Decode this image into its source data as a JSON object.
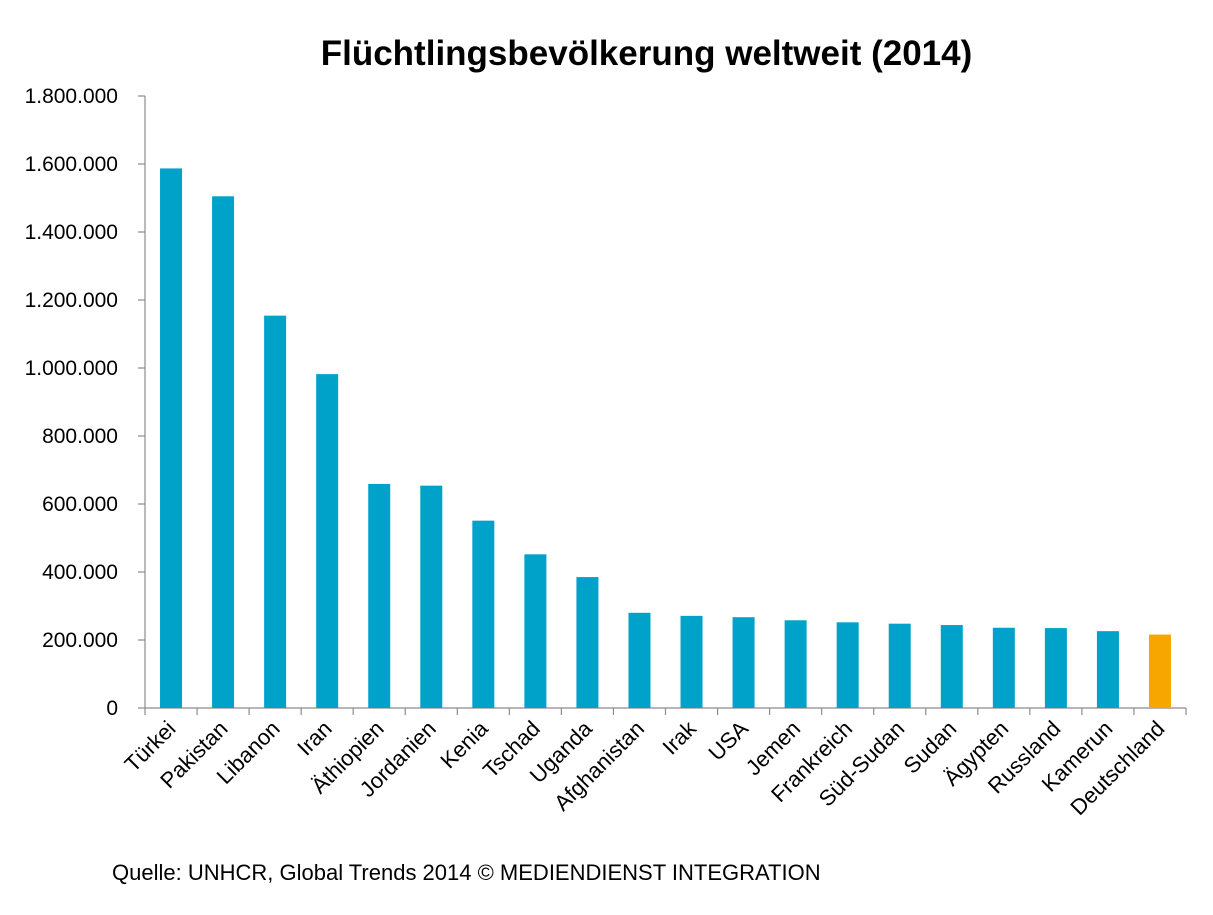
{
  "chart_data": {
    "type": "bar",
    "title": "Flüchtlingsbevölkerung weltweit (2014)",
    "source": "Quelle: UNHCR, Global Trends 2014 © MEDIENDIENST INTEGRATION",
    "xlabel": "",
    "ylabel": "",
    "ylim": [
      0,
      1800000
    ],
    "yticks": [
      0,
      200000,
      400000,
      600000,
      800000,
      1000000,
      1200000,
      1400000,
      1600000,
      1800000
    ],
    "ytick_labels": [
      "0",
      "200.000",
      "400.000",
      "600.000",
      "800.000",
      "1.000.000",
      "1.200.000",
      "1.400.000",
      "1.600.000",
      "1.800.000"
    ],
    "grid": false,
    "legend": "none",
    "categories": [
      "Türkei",
      "Pakistan",
      "Libanon",
      "Iran",
      "Äthiopien",
      "Jordanien",
      "Kenia",
      "Tschad",
      "Uganda",
      "Afghanistan",
      "Irak",
      "USA",
      "Jemen",
      "Frankreich",
      "Süd-Sudan",
      "Sudan",
      "Ägypten",
      "Russland",
      "Kamerun",
      "Deutschland"
    ],
    "values": [
      1587000,
      1505000,
      1154000,
      982000,
      659000,
      654000,
      551000,
      452000,
      385000,
      280000,
      271000,
      267000,
      258000,
      252000,
      248000,
      244000,
      236000,
      235000,
      226000,
      216000
    ],
    "colors": {
      "default": "#00A2CA",
      "highlight": "#F7A600"
    },
    "highlight_category": "Deutschland"
  }
}
